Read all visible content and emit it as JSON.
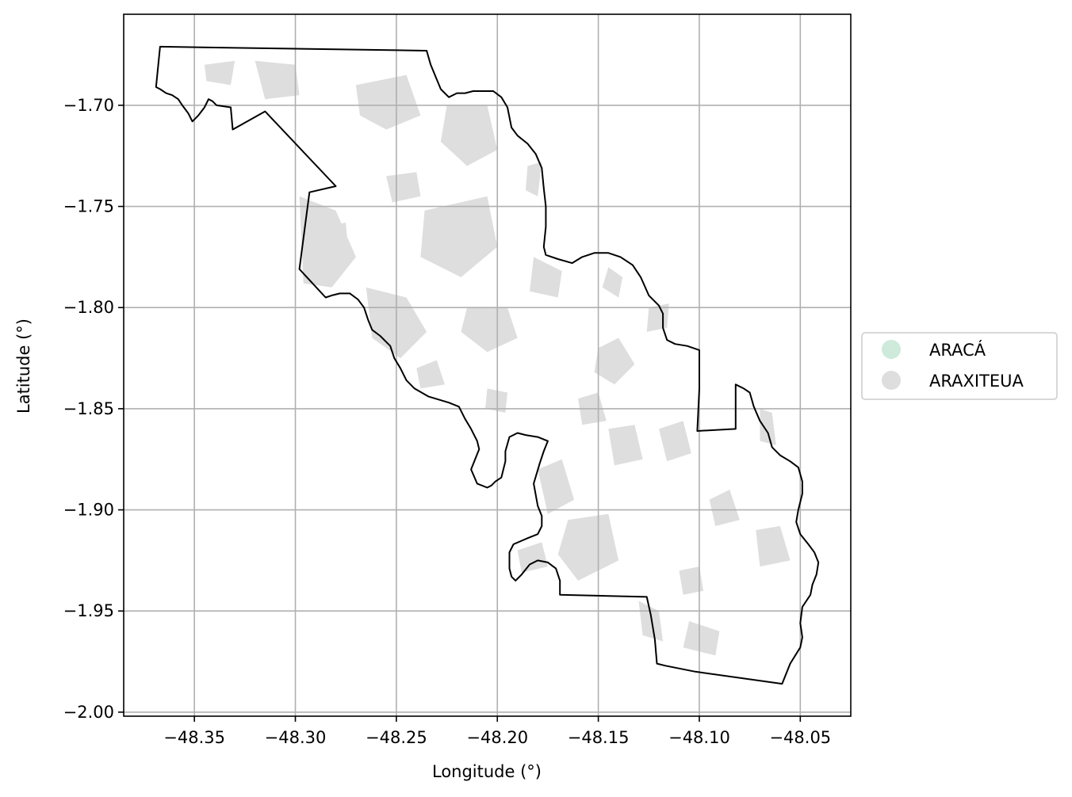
{
  "chart_data": {
    "type": "map",
    "xlabel": "Longitude (°)",
    "ylabel": "Latitude (°)",
    "xlim": [
      -48.385,
      -48.025
    ],
    "ylim": [
      -2.002,
      -1.655
    ],
    "x_ticks": [
      -48.35,
      -48.3,
      -48.25,
      -48.2,
      -48.15,
      -48.1,
      -48.05
    ],
    "x_tick_labels": [
      "−48.35",
      "−48.30",
      "−48.25",
      "−48.20",
      "−48.15",
      "−48.10",
      "−48.05"
    ],
    "y_ticks": [
      -1.7,
      -1.75,
      -1.8,
      -1.85,
      -1.9,
      -1.95,
      -2.0
    ],
    "y_tick_labels": [
      "−1.70",
      "−1.75",
      "−1.80",
      "−1.85",
      "−1.90",
      "−1.95",
      "−2.00"
    ],
    "grid": true,
    "legend_placement": "outside-right",
    "legend": [
      {
        "label": "ARACÁ",
        "color": "#cdeadb"
      },
      {
        "label": "ARAXITEUA",
        "color": "#dedede"
      }
    ],
    "boundary": [
      [
        -48.367,
        -1.671
      ],
      [
        -48.235,
        -1.673
      ],
      [
        -48.233,
        -1.68
      ],
      [
        -48.228,
        -1.692
      ],
      [
        -48.224,
        -1.696
      ],
      [
        -48.22,
        -1.694
      ],
      [
        -48.216,
        -1.694
      ],
      [
        -48.212,
        -1.693
      ],
      [
        -48.202,
        -1.693
      ],
      [
        -48.198,
        -1.696
      ],
      [
        -48.195,
        -1.701
      ],
      [
        -48.193,
        -1.711
      ],
      [
        -48.19,
        -1.715
      ],
      [
        -48.185,
        -1.719
      ],
      [
        -48.181,
        -1.724
      ],
      [
        -48.178,
        -1.731
      ],
      [
        -48.177,
        -1.741
      ],
      [
        -48.176,
        -1.75
      ],
      [
        -48.176,
        -1.76
      ],
      [
        -48.177,
        -1.77
      ],
      [
        -48.176,
        -1.774
      ],
      [
        -48.17,
        -1.776
      ],
      [
        -48.163,
        -1.778
      ],
      [
        -48.158,
        -1.775
      ],
      [
        -48.152,
        -1.773
      ],
      [
        -48.145,
        -1.773
      ],
      [
        -48.139,
        -1.775
      ],
      [
        -48.133,
        -1.779
      ],
      [
        -48.129,
        -1.785
      ],
      [
        -48.125,
        -1.794
      ],
      [
        -48.12,
        -1.799
      ],
      [
        -48.118,
        -1.803
      ],
      [
        -48.118,
        -1.81
      ],
      [
        -48.116,
        -1.816
      ],
      [
        -48.112,
        -1.818
      ],
      [
        -48.106,
        -1.819
      ],
      [
        -48.1,
        -1.821
      ],
      [
        -48.1,
        -1.84
      ],
      [
        -48.101,
        -1.861
      ],
      [
        -48.082,
        -1.86
      ],
      [
        -48.082,
        -1.838
      ],
      [
        -48.078,
        -1.84
      ],
      [
        -48.075,
        -1.842
      ],
      [
        -48.073,
        -1.849
      ],
      [
        -48.07,
        -1.856
      ],
      [
        -48.066,
        -1.862
      ],
      [
        -48.064,
        -1.869
      ],
      [
        -48.06,
        -1.873
      ],
      [
        -48.055,
        -1.876
      ],
      [
        -48.051,
        -1.879
      ],
      [
        -48.049,
        -1.886
      ],
      [
        -48.049,
        -1.892
      ],
      [
        -48.051,
        -1.9
      ],
      [
        -48.052,
        -1.906
      ],
      [
        -48.05,
        -1.912
      ],
      [
        -48.046,
        -1.917
      ],
      [
        -48.043,
        -1.921
      ],
      [
        -48.041,
        -1.926
      ],
      [
        -48.042,
        -1.932
      ],
      [
        -48.044,
        -1.937
      ],
      [
        -48.045,
        -1.942
      ],
      [
        -48.049,
        -1.948
      ],
      [
        -48.05,
        -1.956
      ],
      [
        -48.049,
        -1.963
      ],
      [
        -48.05,
        -1.968
      ],
      [
        -48.055,
        -1.976
      ],
      [
        -48.059,
        -1.986
      ],
      [
        -48.102,
        -1.98
      ],
      [
        -48.117,
        -1.977
      ],
      [
        -48.121,
        -1.976
      ],
      [
        -48.122,
        -1.964
      ],
      [
        -48.124,
        -1.952
      ],
      [
        -48.126,
        -1.943
      ],
      [
        -48.169,
        -1.942
      ],
      [
        -48.169,
        -1.935
      ],
      [
        -48.171,
        -1.929
      ],
      [
        -48.175,
        -1.926
      ],
      [
        -48.18,
        -1.925
      ],
      [
        -48.184,
        -1.927
      ],
      [
        -48.188,
        -1.932
      ],
      [
        -48.191,
        -1.935
      ],
      [
        -48.193,
        -1.933
      ],
      [
        -48.194,
        -1.929
      ],
      [
        -48.194,
        -1.921
      ],
      [
        -48.192,
        -1.917
      ],
      [
        -48.185,
        -1.914
      ],
      [
        -48.18,
        -1.912
      ],
      [
        -48.178,
        -1.908
      ],
      [
        -48.178,
        -1.903
      ],
      [
        -48.18,
        -1.898
      ],
      [
        -48.182,
        -1.887
      ],
      [
        -48.179,
        -1.877
      ],
      [
        -48.177,
        -1.871
      ],
      [
        -48.175,
        -1.866
      ],
      [
        -48.18,
        -1.864
      ],
      [
        -48.186,
        -1.863
      ],
      [
        -48.19,
        -1.862
      ],
      [
        -48.194,
        -1.864
      ],
      [
        -48.196,
        -1.871
      ],
      [
        -48.196,
        -1.876
      ],
      [
        -48.198,
        -1.884
      ],
      [
        -48.201,
        -1.886
      ],
      [
        -48.203,
        -1.888
      ],
      [
        -48.205,
        -1.889
      ],
      [
        -48.21,
        -1.887
      ],
      [
        -48.213,
        -1.88
      ],
      [
        -48.211,
        -1.875
      ],
      [
        -48.209,
        -1.87
      ],
      [
        -48.21,
        -1.866
      ],
      [
        -48.213,
        -1.86
      ],
      [
        -48.216,
        -1.855
      ],
      [
        -48.219,
        -1.849
      ],
      [
        -48.224,
        -1.847
      ],
      [
        -48.234,
        -1.844
      ],
      [
        -48.241,
        -1.84
      ],
      [
        -48.245,
        -1.836
      ],
      [
        -48.248,
        -1.83
      ],
      [
        -48.251,
        -1.825
      ],
      [
        -48.253,
        -1.819
      ],
      [
        -48.258,
        -1.814
      ],
      [
        -48.262,
        -1.811
      ],
      [
        -48.264,
        -1.806
      ],
      [
        -48.266,
        -1.8
      ],
      [
        -48.269,
        -1.796
      ],
      [
        -48.273,
        -1.793
      ],
      [
        -48.278,
        -1.793
      ],
      [
        -48.282,
        -1.794
      ],
      [
        -48.285,
        -1.795
      ],
      [
        -48.298,
        -1.781
      ],
      [
        -48.293,
        -1.743
      ],
      [
        -48.28,
        -1.74
      ],
      [
        -48.315,
        -1.703
      ],
      [
        -48.331,
        -1.712
      ],
      [
        -48.332,
        -1.701
      ],
      [
        -48.339,
        -1.7
      ],
      [
        -48.341,
        -1.698
      ],
      [
        -48.343,
        -1.697
      ],
      [
        -48.345,
        -1.701
      ],
      [
        -48.348,
        -1.705
      ],
      [
        -48.351,
        -1.708
      ],
      [
        -48.353,
        -1.704
      ],
      [
        -48.356,
        -1.7
      ],
      [
        -48.358,
        -1.697
      ],
      [
        -48.361,
        -1.695
      ],
      [
        -48.364,
        -1.694
      ],
      [
        -48.367,
        -1.692
      ],
      [
        -48.369,
        -1.691
      ],
      [
        -48.367,
        -1.671
      ]
    ],
    "araxiteua_patches": [
      [
        [
          -48.298,
          -1.745
        ],
        [
          -48.28,
          -1.752
        ],
        [
          -48.27,
          -1.775
        ],
        [
          -48.282,
          -1.79
        ],
        [
          -48.296,
          -1.788
        ]
      ],
      [
        [
          -48.265,
          -1.79
        ],
        [
          -48.245,
          -1.795
        ],
        [
          -48.235,
          -1.812
        ],
        [
          -48.248,
          -1.825
        ],
        [
          -48.262,
          -1.815
        ]
      ],
      [
        [
          -48.236,
          -1.752
        ],
        [
          -48.205,
          -1.745
        ],
        [
          -48.2,
          -1.77
        ],
        [
          -48.218,
          -1.785
        ],
        [
          -48.238,
          -1.775
        ]
      ],
      [
        [
          -48.225,
          -1.7
        ],
        [
          -48.205,
          -1.7
        ],
        [
          -48.2,
          -1.722
        ],
        [
          -48.215,
          -1.73
        ],
        [
          -48.228,
          -1.718
        ]
      ],
      [
        [
          -48.27,
          -1.69
        ],
        [
          -48.245,
          -1.685
        ],
        [
          -48.238,
          -1.705
        ],
        [
          -48.255,
          -1.712
        ],
        [
          -48.268,
          -1.705
        ]
      ],
      [
        [
          -48.32,
          -1.678
        ],
        [
          -48.3,
          -1.68
        ],
        [
          -48.298,
          -1.695
        ],
        [
          -48.315,
          -1.697
        ]
      ],
      [
        [
          -48.215,
          -1.8
        ],
        [
          -48.195,
          -1.8
        ],
        [
          -48.19,
          -1.815
        ],
        [
          -48.205,
          -1.822
        ],
        [
          -48.218,
          -1.812
        ]
      ],
      [
        [
          -48.182,
          -1.775
        ],
        [
          -48.168,
          -1.782
        ],
        [
          -48.17,
          -1.795
        ],
        [
          -48.184,
          -1.792
        ]
      ],
      [
        [
          -48.15,
          -1.82
        ],
        [
          -48.14,
          -1.815
        ],
        [
          -48.132,
          -1.828
        ],
        [
          -48.142,
          -1.838
        ],
        [
          -48.152,
          -1.832
        ]
      ],
      [
        [
          -48.18,
          -1.88
        ],
        [
          -48.168,
          -1.875
        ],
        [
          -48.162,
          -1.895
        ],
        [
          -48.175,
          -1.902
        ]
      ],
      [
        [
          -48.165,
          -1.905
        ],
        [
          -48.145,
          -1.902
        ],
        [
          -48.14,
          -1.925
        ],
        [
          -48.16,
          -1.935
        ],
        [
          -48.17,
          -1.922
        ]
      ],
      [
        [
          -48.19,
          -1.92
        ],
        [
          -48.178,
          -1.916
        ],
        [
          -48.175,
          -1.928
        ],
        [
          -48.188,
          -1.931
        ]
      ],
      [
        [
          -48.13,
          -1.945
        ],
        [
          -48.12,
          -1.95
        ],
        [
          -48.118,
          -1.965
        ],
        [
          -48.128,
          -1.962
        ]
      ],
      [
        [
          -48.105,
          -1.955
        ],
        [
          -48.09,
          -1.96
        ],
        [
          -48.092,
          -1.972
        ],
        [
          -48.108,
          -1.968
        ]
      ],
      [
        [
          -48.095,
          -1.895
        ],
        [
          -48.085,
          -1.89
        ],
        [
          -48.08,
          -1.905
        ],
        [
          -48.092,
          -1.908
        ]
      ],
      [
        [
          -48.072,
          -1.91
        ],
        [
          -48.06,
          -1.908
        ],
        [
          -48.055,
          -1.925
        ],
        [
          -48.07,
          -1.928
        ]
      ],
      [
        [
          -48.07,
          -1.85
        ],
        [
          -48.064,
          -1.852
        ],
        [
          -48.062,
          -1.868
        ],
        [
          -48.07,
          -1.866
        ]
      ],
      [
        [
          -48.12,
          -1.86
        ],
        [
          -48.108,
          -1.856
        ],
        [
          -48.104,
          -1.872
        ],
        [
          -48.116,
          -1.876
        ]
      ],
      [
        [
          -48.145,
          -1.86
        ],
        [
          -48.132,
          -1.858
        ],
        [
          -48.128,
          -1.875
        ],
        [
          -48.142,
          -1.878
        ]
      ],
      [
        [
          -48.16,
          -1.845
        ],
        [
          -48.15,
          -1.842
        ],
        [
          -48.146,
          -1.856
        ],
        [
          -48.158,
          -1.858
        ]
      ],
      [
        [
          -48.205,
          -1.84
        ],
        [
          -48.195,
          -1.842
        ],
        [
          -48.196,
          -1.852
        ],
        [
          -48.206,
          -1.85
        ]
      ],
      [
        [
          -48.24,
          -1.83
        ],
        [
          -48.23,
          -1.826
        ],
        [
          -48.226,
          -1.838
        ],
        [
          -48.238,
          -1.84
        ]
      ],
      [
        [
          -48.285,
          -1.76
        ],
        [
          -48.275,
          -1.758
        ],
        [
          -48.274,
          -1.77
        ],
        [
          -48.284,
          -1.772
        ]
      ],
      [
        [
          -48.255,
          -1.735
        ],
        [
          -48.24,
          -1.733
        ],
        [
          -48.238,
          -1.745
        ],
        [
          -48.252,
          -1.748
        ]
      ],
      [
        [
          -48.185,
          -1.73
        ],
        [
          -48.178,
          -1.728
        ],
        [
          -48.18,
          -1.745
        ],
        [
          -48.186,
          -1.742
        ]
      ],
      [
        [
          -48.345,
          -1.68
        ],
        [
          -48.33,
          -1.678
        ],
        [
          -48.332,
          -1.69
        ],
        [
          -48.344,
          -1.688
        ]
      ],
      [
        [
          -48.125,
          -1.8
        ],
        [
          -48.115,
          -1.798
        ],
        [
          -48.116,
          -1.81
        ],
        [
          -48.126,
          -1.812
        ]
      ],
      [
        [
          -48.11,
          -1.93
        ],
        [
          -48.1,
          -1.928
        ],
        [
          -48.098,
          -1.94
        ],
        [
          -48.108,
          -1.942
        ]
      ],
      [
        [
          -48.145,
          -1.78
        ],
        [
          -48.138,
          -1.785
        ],
        [
          -48.14,
          -1.795
        ],
        [
          -48.148,
          -1.79
        ]
      ]
    ]
  }
}
